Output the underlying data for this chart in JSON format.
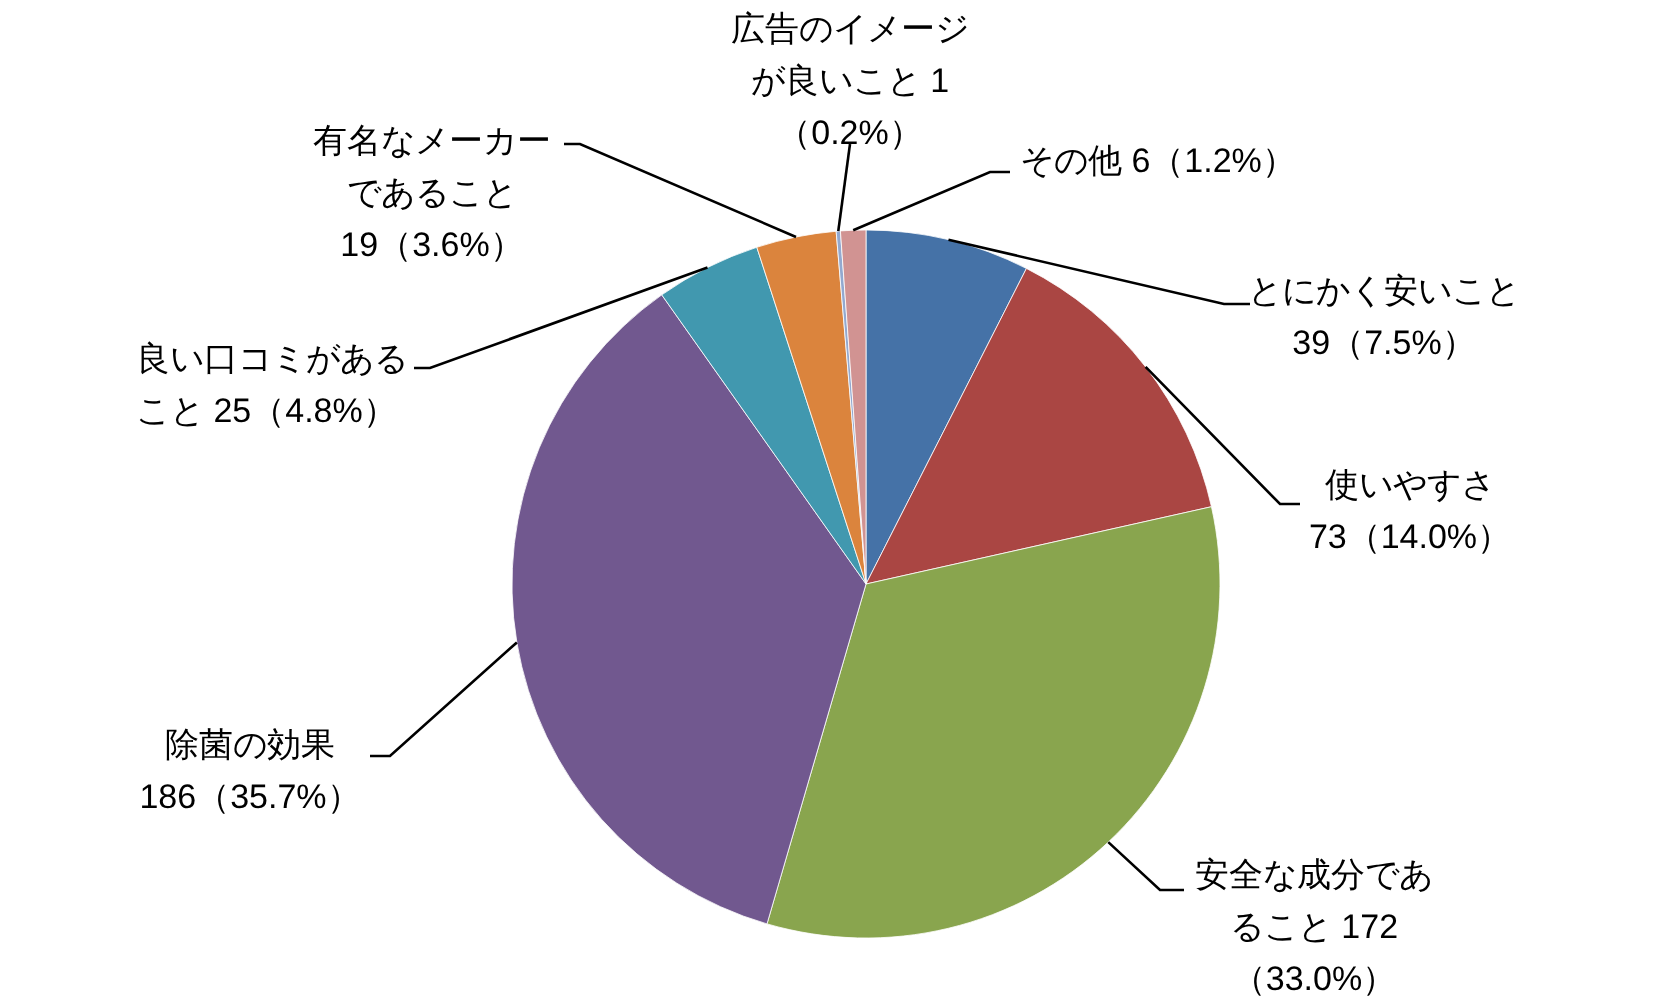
{
  "chart_data": {
    "type": "pie",
    "categories": [
      "とにかく安いこと",
      "使いやすさ",
      "安全な成分であること",
      "除菌の効果",
      "良い口コミがあること",
      "有名なメーカーであること",
      "広告のイメージが良いこと",
      "その他"
    ],
    "values": [
      39,
      73,
      172,
      186,
      25,
      19,
      1,
      6
    ],
    "value_labels": [
      "39（7.5%）",
      "73（14.0%）",
      "172（33.0%）",
      "186（35.7%）",
      "25（4.8%）",
      "19（3.6%）",
      "1（0.2%）",
      "6（1.2%）"
    ],
    "colors": [
      "#4572a7",
      "#aa4643",
      "#89a54e",
      "#71588f",
      "#4198af",
      "#db843d",
      "#93a9cf",
      "#d19392"
    ]
  }
}
